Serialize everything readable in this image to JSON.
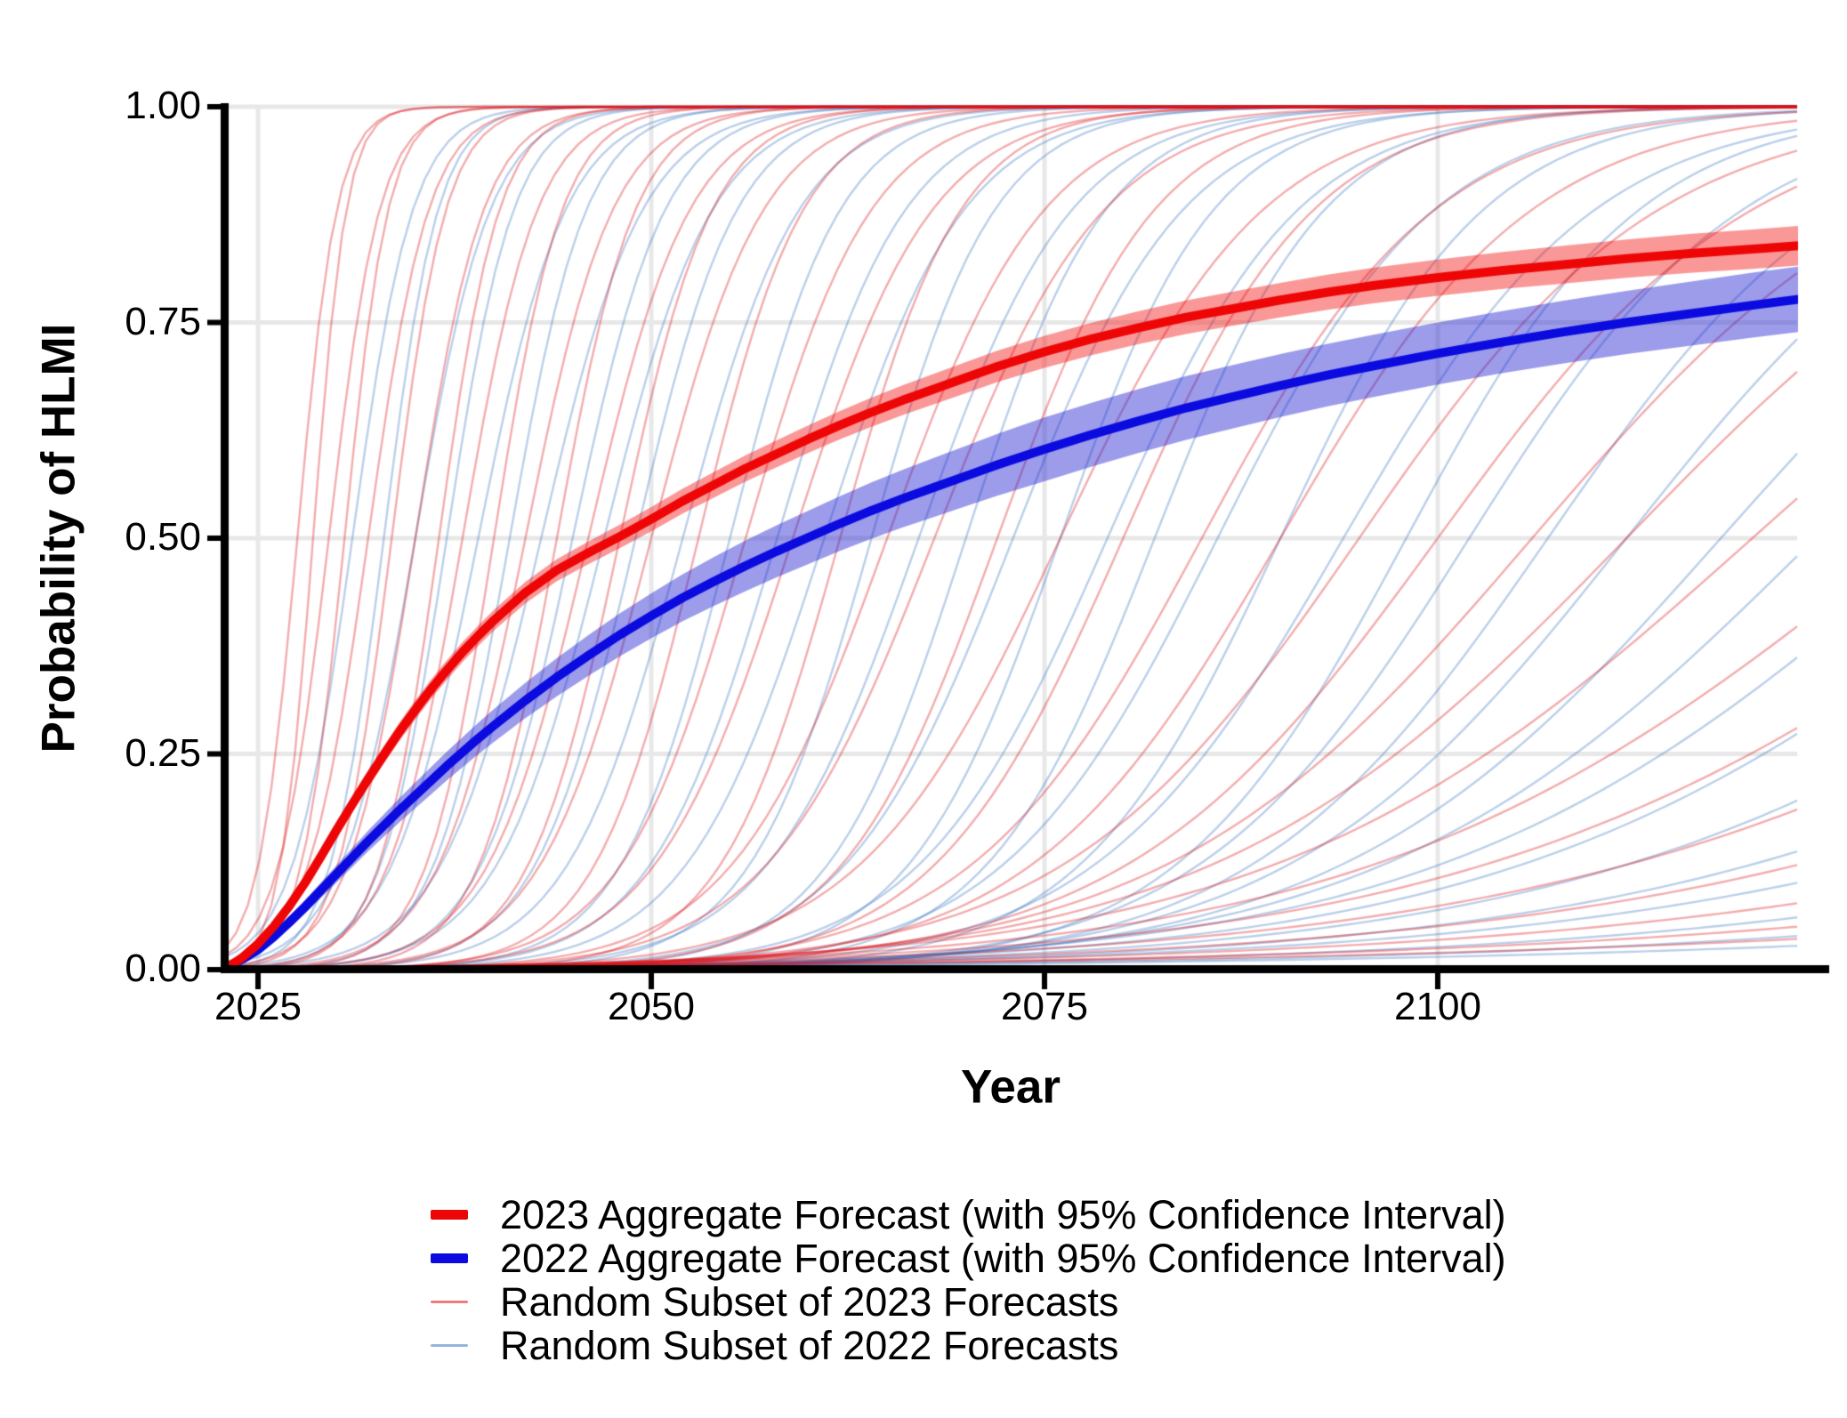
{
  "figure": {
    "background": "#ffffff"
  },
  "chart_data": {
    "type": "line",
    "title": "",
    "xlabel": "Year",
    "ylabel": "Probability of HLMI",
    "x_domain": [
      2022.85,
      2122.85
    ],
    "y_domain": [
      0,
      1
    ],
    "grid": {
      "show": true,
      "color": "#e8e8e8",
      "width": 5
    },
    "x_ticks": [
      {
        "value": 2025,
        "label": "2025"
      },
      {
        "value": 2050,
        "label": "2050"
      },
      {
        "value": 2075,
        "label": "2075"
      },
      {
        "value": 2100,
        "label": "2100"
      }
    ],
    "y_ticks": [
      {
        "value": 1.0,
        "label": "1.00"
      },
      {
        "value": 0.75,
        "label": "0.75"
      },
      {
        "value": 0.5,
        "label": "0.50"
      },
      {
        "value": 0.25,
        "label": "0.25"
      },
      {
        "value": 0.0,
        "label": "0.00"
      }
    ],
    "series": [
      {
        "name": "2023 Aggregate Forecast (with 95% Confidence Interval)",
        "color": "#ee0606",
        "band_color": "rgba(242,10,10,0.42)",
        "line_width": 10,
        "points": [
          [
            2023.1,
            0.003
          ],
          [
            2024,
            0.014
          ],
          [
            2025,
            0.03
          ],
          [
            2026,
            0.05
          ],
          [
            2027,
            0.074
          ],
          [
            2028,
            0.101
          ],
          [
            2029,
            0.131
          ],
          [
            2030,
            0.162
          ],
          [
            2031,
            0.192
          ],
          [
            2032,
            0.221
          ],
          [
            2033,
            0.249
          ],
          [
            2034,
            0.276
          ],
          [
            2035,
            0.301
          ],
          [
            2036,
            0.325
          ],
          [
            2037,
            0.347
          ],
          [
            2038,
            0.368
          ],
          [
            2039,
            0.387
          ],
          [
            2040,
            0.405
          ],
          [
            2042,
            0.437
          ],
          [
            2044,
            0.463
          ],
          [
            2046,
            0.483
          ],
          [
            2048,
            0.502
          ],
          [
            2050,
            0.522
          ],
          [
            2052,
            0.543
          ],
          [
            2054,
            0.562
          ],
          [
            2056,
            0.581
          ],
          [
            2058,
            0.598
          ],
          [
            2060,
            0.615
          ],
          [
            2062,
            0.631
          ],
          [
            2064,
            0.646
          ],
          [
            2066,
            0.66
          ],
          [
            2068,
            0.673
          ],
          [
            2070,
            0.686
          ],
          [
            2072,
            0.699
          ],
          [
            2075,
            0.716
          ],
          [
            2078,
            0.731
          ],
          [
            2081,
            0.744
          ],
          [
            2084,
            0.756
          ],
          [
            2087,
            0.766
          ],
          [
            2090,
            0.776
          ],
          [
            2093,
            0.785
          ],
          [
            2096,
            0.793
          ],
          [
            2100,
            0.802
          ],
          [
            2104,
            0.81
          ],
          [
            2108,
            0.817
          ],
          [
            2112,
            0.824
          ],
          [
            2116,
            0.83
          ],
          [
            2120,
            0.835
          ],
          [
            2123,
            0.839
          ]
        ],
        "ci_halfwidth": [
          [
            2023,
            0.002
          ],
          [
            2027,
            0.006
          ],
          [
            2030,
            0.009
          ],
          [
            2035,
            0.011
          ],
          [
            2040,
            0.012
          ],
          [
            2050,
            0.014
          ],
          [
            2060,
            0.016
          ],
          [
            2070,
            0.018
          ],
          [
            2080,
            0.019
          ],
          [
            2090,
            0.02
          ],
          [
            2100,
            0.021
          ],
          [
            2110,
            0.022
          ],
          [
            2123,
            0.023
          ]
        ]
      },
      {
        "name": "2022 Aggregate Forecast (with 95% Confidence Interval)",
        "color": "#0b0bdf",
        "band_color": "rgba(35,35,210,0.45)",
        "line_width": 10,
        "points": [
          [
            2022.9,
            0.002
          ],
          [
            2024,
            0.012
          ],
          [
            2025,
            0.023
          ],
          [
            2026,
            0.038
          ],
          [
            2027,
            0.055
          ],
          [
            2028,
            0.073
          ],
          [
            2029,
            0.092
          ],
          [
            2030,
            0.111
          ],
          [
            2031,
            0.13
          ],
          [
            2032,
            0.149
          ],
          [
            2033,
            0.167
          ],
          [
            2034,
            0.185
          ],
          [
            2035,
            0.202
          ],
          [
            2036,
            0.219
          ],
          [
            2037,
            0.236
          ],
          [
            2038,
            0.252
          ],
          [
            2039,
            0.268
          ],
          [
            2040,
            0.283
          ],
          [
            2042,
            0.312
          ],
          [
            2044,
            0.339
          ],
          [
            2046,
            0.364
          ],
          [
            2048,
            0.388
          ],
          [
            2050,
            0.41
          ],
          [
            2052,
            0.431
          ],
          [
            2054,
            0.45
          ],
          [
            2056,
            0.468
          ],
          [
            2058,
            0.485
          ],
          [
            2060,
            0.501
          ],
          [
            2062,
            0.517
          ],
          [
            2064,
            0.532
          ],
          [
            2066,
            0.546
          ],
          [
            2068,
            0.559
          ],
          [
            2070,
            0.572
          ],
          [
            2072,
            0.585
          ],
          [
            2075,
            0.603
          ],
          [
            2078,
            0.62
          ],
          [
            2081,
            0.636
          ],
          [
            2084,
            0.651
          ],
          [
            2087,
            0.664
          ],
          [
            2090,
            0.677
          ],
          [
            2093,
            0.689
          ],
          [
            2096,
            0.7
          ],
          [
            2100,
            0.714
          ],
          [
            2104,
            0.727
          ],
          [
            2108,
            0.739
          ],
          [
            2112,
            0.75
          ],
          [
            2116,
            0.76
          ],
          [
            2120,
            0.77
          ],
          [
            2123,
            0.777
          ]
        ],
        "ci_halfwidth": [
          [
            2022.9,
            0.002
          ],
          [
            2027,
            0.007
          ],
          [
            2030,
            0.01
          ],
          [
            2035,
            0.015
          ],
          [
            2040,
            0.019
          ],
          [
            2045,
            0.023
          ],
          [
            2050,
            0.026
          ],
          [
            2055,
            0.029
          ],
          [
            2060,
            0.031
          ],
          [
            2065,
            0.033
          ],
          [
            2070,
            0.035
          ],
          [
            2075,
            0.037
          ],
          [
            2085,
            0.037
          ],
          [
            2095,
            0.036
          ],
          [
            2105,
            0.036
          ],
          [
            2115,
            0.037
          ],
          [
            2123,
            0.038
          ]
        ]
      }
    ],
    "random_subsets": [
      {
        "name": "Random Subset of 2023 Forecasts",
        "color": "rgba(220,20,25,0.35)",
        "line_width": 2.4,
        "model": "logistic P(t)=1/(1+exp(-k*(t-t50)))",
        "curves": [
          [
            2027.5,
            0.8
          ],
          [
            2028.5,
            0.95
          ],
          [
            2029.5,
            0.62
          ],
          [
            2030.5,
            0.72
          ],
          [
            2032,
            0.52
          ],
          [
            2033.5,
            0.58
          ],
          [
            2035,
            0.46
          ],
          [
            2036.5,
            0.52
          ],
          [
            2038,
            0.42
          ],
          [
            2040,
            0.46
          ],
          [
            2042,
            0.36
          ],
          [
            2044,
            0.4
          ],
          [
            2046,
            0.31
          ],
          [
            2048,
            0.34
          ],
          [
            2050,
            0.28
          ],
          [
            2053,
            0.3
          ],
          [
            2056,
            0.25
          ],
          [
            2059,
            0.225
          ],
          [
            2062,
            0.26
          ],
          [
            2065,
            0.2
          ],
          [
            2068,
            0.185
          ],
          [
            2072,
            0.2
          ],
          [
            2076,
            0.155
          ],
          [
            2080,
            0.165
          ],
          [
            2085,
            0.135
          ],
          [
            2090,
            0.125
          ],
          [
            2095,
            0.105
          ],
          [
            2100,
            0.1
          ],
          [
            2106,
            0.085
          ],
          [
            2112,
            0.075
          ],
          [
            2120,
            0.065
          ],
          [
            2130,
            0.058
          ],
          [
            2141,
            0.052
          ],
          [
            2155,
            0.046
          ],
          [
            2170,
            0.042
          ],
          [
            2190,
            0.037
          ],
          [
            2215,
            0.032
          ],
          [
            2245,
            0.027
          ]
        ]
      },
      {
        "name": "Random Subset of 2022 Forecasts",
        "color": "rgba(60,120,195,0.35)",
        "line_width": 2.4,
        "model": "logistic P(t)=1/(1+exp(-k*(t-t50)))",
        "curves": [
          [
            2031,
            0.52
          ],
          [
            2033,
            0.58
          ],
          [
            2035,
            0.42
          ],
          [
            2037,
            0.47
          ],
          [
            2039,
            0.36
          ],
          [
            2041,
            0.41
          ],
          [
            2043,
            0.31
          ],
          [
            2045,
            0.34
          ],
          [
            2047,
            0.29
          ],
          [
            2049,
            0.31
          ],
          [
            2052,
            0.27
          ],
          [
            2055,
            0.285
          ],
          [
            2058,
            0.245
          ],
          [
            2061,
            0.225
          ],
          [
            2064,
            0.255
          ],
          [
            2067,
            0.205
          ],
          [
            2070,
            0.225
          ],
          [
            2073,
            0.185
          ],
          [
            2076,
            0.205
          ],
          [
            2079,
            0.165
          ],
          [
            2082,
            0.185
          ],
          [
            2086,
            0.145
          ],
          [
            2090,
            0.155
          ],
          [
            2094,
            0.125
          ],
          [
            2098,
            0.135
          ],
          [
            2102,
            0.115
          ],
          [
            2107,
            0.105
          ],
          [
            2112,
            0.092
          ],
          [
            2118,
            0.082
          ],
          [
            2124,
            0.072
          ],
          [
            2132,
            0.062
          ],
          [
            2140,
            0.057
          ],
          [
            2150,
            0.052
          ],
          [
            2162,
            0.047
          ],
          [
            2175,
            0.042
          ],
          [
            2195,
            0.038
          ],
          [
            2220,
            0.033
          ],
          [
            2250,
            0.028
          ]
        ]
      }
    ]
  },
  "legend": {
    "items": [
      {
        "label": "2023 Aggregate Forecast (with 95% Confidence Interval)",
        "key_color": "#ee0606",
        "key_height": 11
      },
      {
        "label": "2022 Aggregate Forecast (with 95% Confidence Interval)",
        "key_color": "#0b0bdf",
        "key_height": 11
      },
      {
        "label": "Random Subset of 2023 Forecasts",
        "key_color": "rgba(220,20,25,0.55)",
        "key_height": 3
      },
      {
        "label": "Random Subset of 2022 Forecasts",
        "key_color": "rgba(60,120,195,0.55)",
        "key_height": 3
      }
    ]
  }
}
